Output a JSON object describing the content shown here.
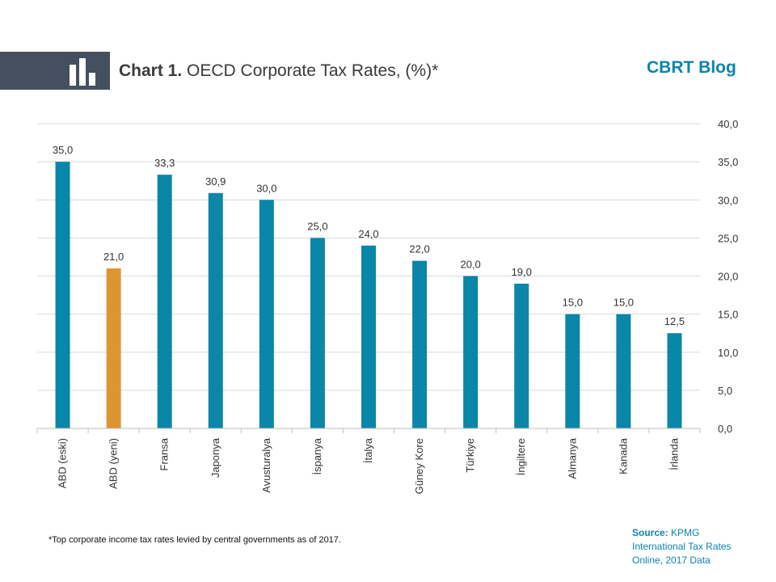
{
  "header": {
    "title_bold": "Chart 1.",
    "title_rest": " OECD Corporate Tax Rates, (%)*",
    "brand": "CBRT Blog",
    "icon": "bar-chart-icon",
    "band_color": "#44505f",
    "brand_color": "#0a86a8"
  },
  "footer": {
    "footnote": "*Top corporate income tax rates  levied by central governments  as of 2017.",
    "source_label": "Source:",
    "source_line1": " KPMG",
    "source_line2": "International Tax Rates",
    "source_line3": "Online, 2017 Data"
  },
  "chart_data": {
    "type": "bar",
    "title": "OECD Corporate Tax Rates, (%)*",
    "categories": [
      "ABD (eski)",
      "ABD (yeni)",
      "Fransa",
      "Japonya",
      "Avusturalya",
      "İspanya",
      "İtalya",
      "Güney Kore",
      "Türkiye",
      "İngiltere",
      "Almanya",
      "Kanada",
      "İrlanda"
    ],
    "values": [
      35.0,
      21.0,
      33.3,
      30.9,
      30.0,
      25.0,
      24.0,
      22.0,
      20.0,
      19.0,
      15.0,
      15.0,
      12.5
    ],
    "value_labels": [
      "35,0",
      "21,0",
      "33,3",
      "30,9",
      "30,0",
      "25,0",
      "24,0",
      "22,0",
      "20,0",
      "19,0",
      "15,0",
      "15,0",
      "12,5"
    ],
    "highlight_index": 1,
    "bar_color": "#0a86a8",
    "highlight_color": "#dd9534",
    "ylim": [
      0,
      40
    ],
    "yticks": [
      0,
      5,
      10,
      15,
      20,
      25,
      30,
      35,
      40
    ],
    "ytick_labels": [
      "0,0",
      "5,0",
      "10,0",
      "15,0",
      "20,0",
      "25,0",
      "30,0",
      "35,0",
      "40,0"
    ],
    "y_axis_side": "right",
    "grid": true,
    "legend": "none",
    "xlabel": "",
    "ylabel": ""
  }
}
